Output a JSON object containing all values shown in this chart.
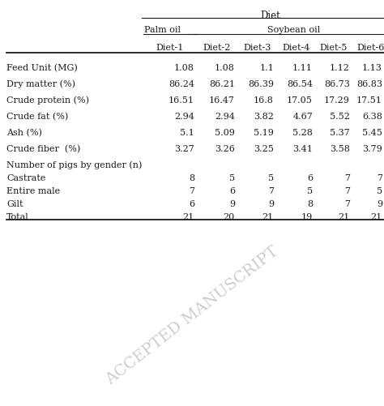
{
  "title": "Diet",
  "col_group1_label": "Palm oil",
  "col_group2_label": "Soybean oil",
  "col_headers": [
    "Diet-1",
    "Diet-2",
    "Diet-3",
    "Diet-4",
    "Diet-5",
    "Diet-6"
  ],
  "row_labels": [
    "Feed Unit (MG)",
    "Dry matter (%)",
    "Crude protein (%)",
    "Crude fat (%)",
    "Ash (%)",
    "Crude fiber  (%)",
    "Number of pigs by gender (n)",
    "Castrate",
    "Entire male",
    "Gilt",
    "Total"
  ],
  "data": [
    [
      "1.08",
      "1.08",
      "1.1",
      "1.11",
      "1.12",
      "1.13"
    ],
    [
      "86.24",
      "86.21",
      "86.39",
      "86.54",
      "86.73",
      "86.83"
    ],
    [
      "16.51",
      "16.47",
      "16.8",
      "17.05",
      "17.29",
      "17.51"
    ],
    [
      "2.94",
      "2.94",
      "3.82",
      "4.67",
      "5.52",
      "6.38"
    ],
    [
      "5.1",
      "5.09",
      "5.19",
      "5.28",
      "5.37",
      "5.45"
    ],
    [
      "3.27",
      "3.26",
      "3.25",
      "3.41",
      "3.58",
      "3.79"
    ],
    [
      "",
      "",
      "",
      "",
      "",
      ""
    ],
    [
      "8",
      "5",
      "5",
      "6",
      "7",
      "7"
    ],
    [
      "7",
      "6",
      "7",
      "5",
      "7",
      "5"
    ],
    [
      "6",
      "9",
      "9",
      "8",
      "7",
      "9"
    ],
    [
      "21",
      "20",
      "21",
      "19",
      "21",
      "21"
    ]
  ],
  "watermark_text": "ACCEPTED MANUSCRIPT",
  "bg_color": "#ffffff",
  "text_color": "#1a1a1a",
  "font_size": 8.0,
  "fig_width": 4.74,
  "fig_height": 5.01,
  "dpi": 100
}
